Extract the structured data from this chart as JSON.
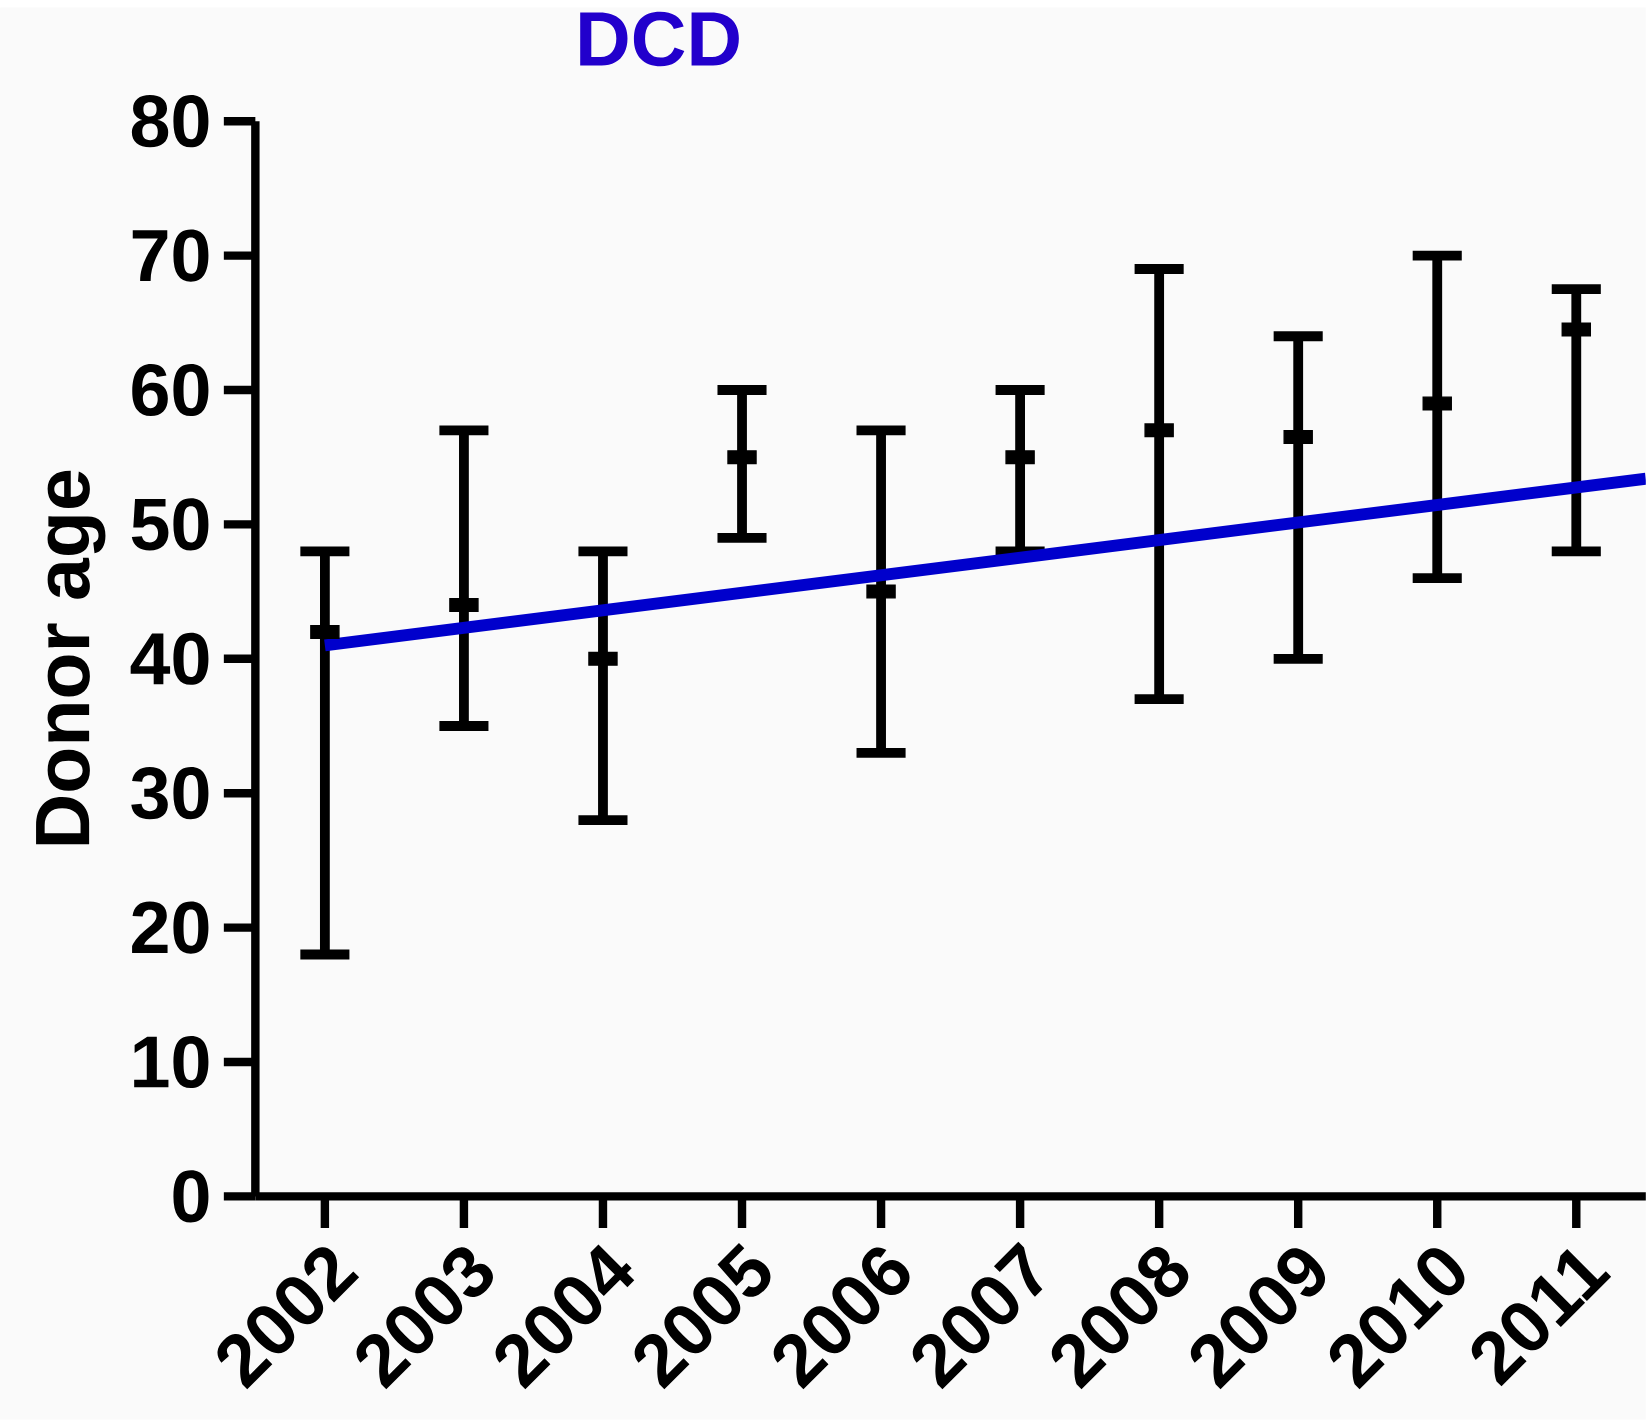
{
  "chart_data": {
    "type": "scatter",
    "title": "DCD",
    "ylabel": "Donor age",
    "x": [
      2002,
      2003,
      2004,
      2005,
      2006,
      2007,
      2008,
      2009,
      2010,
      2011
    ],
    "xlim": [
      2001.5,
      2011.5
    ],
    "xticks": [
      2002,
      2003,
      2004,
      2005,
      2006,
      2007,
      2008,
      2009,
      2010,
      2011
    ],
    "ylim": [
      0,
      80
    ],
    "yticks": [
      0,
      10,
      20,
      30,
      40,
      50,
      60,
      70,
      80
    ],
    "grid": false,
    "series": [
      {
        "type": "scatter",
        "color": "#000000",
        "values": [
          42,
          44,
          40,
          55,
          45,
          55,
          57,
          56.5,
          59,
          64.5
        ],
        "errors": [
          [
            18,
            48
          ],
          [
            35,
            57
          ],
          [
            28,
            48
          ],
          [
            49,
            60
          ],
          [
            33,
            57
          ],
          [
            48,
            60
          ],
          [
            37,
            69
          ],
          [
            40,
            64
          ],
          [
            46,
            70
          ],
          [
            48,
            67.5
          ]
        ]
      },
      {
        "type": "line",
        "color": "#0000cc",
        "x": [
          2002,
          2011.5
        ],
        "values": [
          41,
          53.4
        ]
      }
    ]
  }
}
